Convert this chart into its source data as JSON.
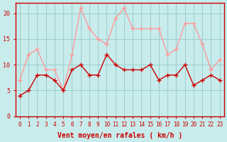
{
  "hours": [
    0,
    1,
    2,
    3,
    4,
    5,
    6,
    7,
    8,
    9,
    10,
    11,
    12,
    13,
    14,
    15,
    16,
    17,
    18,
    19,
    20,
    21,
    22,
    23
  ],
  "wind_avg": [
    4,
    5,
    8,
    8,
    7,
    5,
    9,
    10,
    8,
    8,
    12,
    10,
    9,
    9,
    9,
    10,
    7,
    8,
    8,
    10,
    6,
    7,
    8,
    7
  ],
  "wind_gust": [
    7,
    12,
    13,
    9,
    9,
    5,
    12,
    21,
    17,
    15,
    14,
    19,
    21,
    17,
    17,
    17,
    17,
    12,
    13,
    18,
    18,
    14,
    9,
    11
  ],
  "avg_color": "#cc0000",
  "gust_color": "#ff9999",
  "bg_color": "#c8ecec",
  "grid_color": "#a0d0d0",
  "xlabel": "Vent moyen/en rafales ( km/h )",
  "ylabel_ticks": [
    0,
    5,
    10,
    15,
    20
  ],
  "xlim": [
    -0.5,
    23.5
  ],
  "ylim": [
    0,
    22
  ],
  "xlabel_color": "#cc0000",
  "tick_color": "#cc0000"
}
